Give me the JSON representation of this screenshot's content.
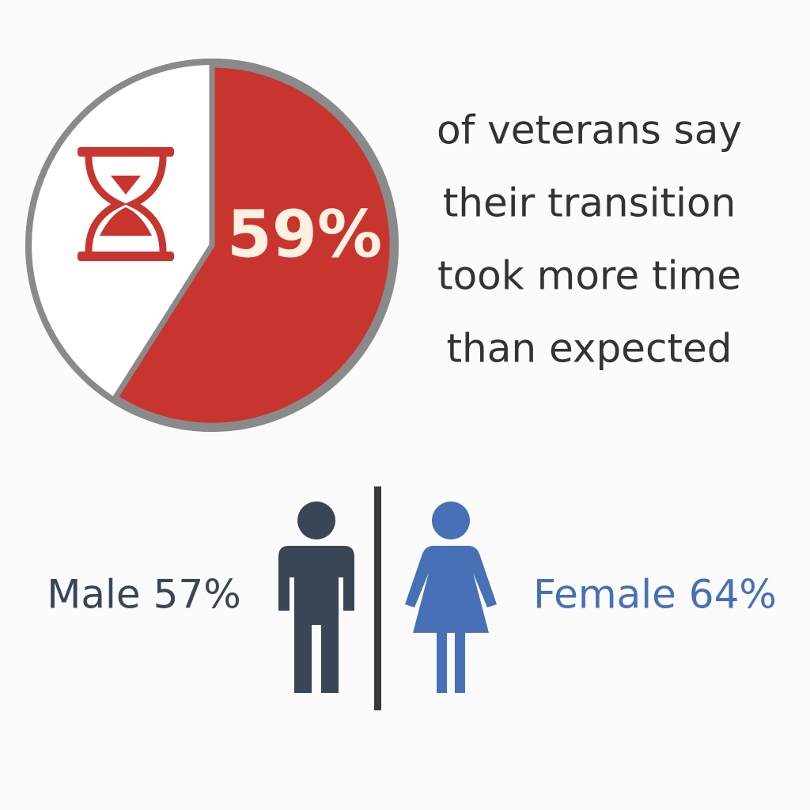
{
  "chart_data": {
    "type": "pie",
    "values": [
      59
    ],
    "value_labels": [
      "59%"
    ],
    "color": "#c8352f",
    "annotations": [
      "of veterans say",
      "their transition",
      "took more time",
      "than expected"
    ]
  },
  "comparison": {
    "male": {
      "label": "Male 57%",
      "color": "#3a4656"
    },
    "female": {
      "label": "Female 64%",
      "color": "#4770b6"
    }
  }
}
